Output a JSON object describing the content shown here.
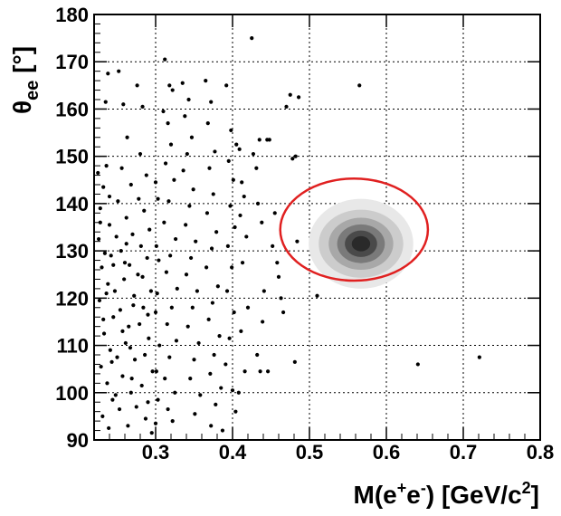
{
  "chart_data": {
    "type": "scatter",
    "title": "",
    "xlabel": "M(e⁺e⁻) [GeV/c²]",
    "ylabel": "θee [°]",
    "xlim": [
      0.22,
      0.8
    ],
    "ylim": [
      90,
      180
    ],
    "grid": true,
    "x_ticks": [
      "0.3",
      "0.4",
      "0.5",
      "0.6",
      "0.7",
      "0.8"
    ],
    "y_ticks": [
      "90",
      "100",
      "110",
      "120",
      "130",
      "140",
      "150",
      "160",
      "170",
      "180"
    ],
    "series": [
      {
        "points": [
          [
            0.238,
            167.5
          ],
          [
            0.235,
            161.5
          ],
          [
            0.236,
            148.0
          ],
          [
            0.225,
            146.5
          ],
          [
            0.232,
            143.5
          ],
          [
            0.228,
            139.0
          ],
          [
            0.24,
            135.5
          ],
          [
            0.226,
            132.5
          ],
          [
            0.242,
            129.0
          ],
          [
            0.23,
            126.5
          ],
          [
            0.238,
            123.0
          ],
          [
            0.227,
            119.5
          ],
          [
            0.245,
            116.0
          ],
          [
            0.233,
            112.5
          ],
          [
            0.241,
            109.0
          ],
          [
            0.229,
            105.5
          ],
          [
            0.237,
            102.0
          ],
          [
            0.244,
            98.5
          ],
          [
            0.231,
            95.0
          ],
          [
            0.239,
            92.5
          ],
          [
            0.252,
            168.0
          ],
          [
            0.258,
            161.0
          ],
          [
            0.263,
            154.0
          ],
          [
            0.256,
            147.5
          ],
          [
            0.268,
            144.0
          ],
          [
            0.251,
            140.5
          ],
          [
            0.262,
            137.0
          ],
          [
            0.27,
            133.5
          ],
          [
            0.255,
            130.0
          ],
          [
            0.266,
            127.0
          ],
          [
            0.259,
            124.0
          ],
          [
            0.272,
            120.5
          ],
          [
            0.254,
            117.5
          ],
          [
            0.265,
            114.0
          ],
          [
            0.261,
            110.5
          ],
          [
            0.273,
            107.0
          ],
          [
            0.257,
            103.5
          ],
          [
            0.268,
            100.0
          ],
          [
            0.253,
            96.5
          ],
          [
            0.264,
            93.0
          ],
          [
            0.276,
            165.0
          ],
          [
            0.283,
            160.5
          ],
          [
            0.28,
            150.5
          ],
          [
            0.288,
            146.0
          ],
          [
            0.278,
            141.0
          ],
          [
            0.285,
            138.5
          ],
          [
            0.292,
            134.5
          ],
          [
            0.281,
            131.0
          ],
          [
            0.289,
            128.5
          ],
          [
            0.277,
            125.0
          ],
          [
            0.294,
            121.5
          ],
          [
            0.284,
            118.0
          ],
          [
            0.279,
            114.5
          ],
          [
            0.291,
            111.5
          ],
          [
            0.286,
            108.0
          ],
          [
            0.296,
            104.5
          ],
          [
            0.282,
            101.5
          ],
          [
            0.29,
            98.0
          ],
          [
            0.287,
            94.5
          ],
          [
            0.295,
            91.5
          ],
          [
            0.228,
            136.0
          ],
          [
            0.249,
            133.0
          ],
          [
            0.234,
            129.5
          ],
          [
            0.26,
            127.5
          ],
          [
            0.247,
            121.5
          ],
          [
            0.271,
            118.5
          ],
          [
            0.232,
            115.5
          ],
          [
            0.257,
            113.0
          ],
          [
            0.243,
            106.5
          ],
          [
            0.269,
            103.0
          ],
          [
            0.248,
            99.5
          ],
          [
            0.275,
            97.0
          ],
          [
            0.236,
            121.0
          ],
          [
            0.262,
            131.5
          ],
          [
            0.25,
            107.5
          ],
          [
            0.283,
            124.5
          ],
          [
            0.24,
            141.5
          ],
          [
            0.267,
            109.5
          ],
          [
            0.245,
            127.0
          ],
          [
            0.29,
            116.5
          ],
          [
            0.3,
            144.5
          ],
          [
            0.303,
            141.0
          ],
          [
            0.301,
            131.0
          ],
          [
            0.304,
            128.0
          ],
          [
            0.302,
            121.0
          ],
          [
            0.3,
            117.0
          ],
          [
            0.305,
            110.0
          ],
          [
            0.301,
            104.5
          ],
          [
            0.303,
            98.5
          ],
          [
            0.3,
            93.5
          ],
          [
            0.312,
            170.5
          ],
          [
            0.318,
            165.0
          ],
          [
            0.322,
            164.0
          ],
          [
            0.31,
            159.5
          ],
          [
            0.316,
            157.0
          ],
          [
            0.32,
            152.5
          ],
          [
            0.313,
            148.5
          ],
          [
            0.324,
            145.0
          ],
          [
            0.317,
            140.5
          ],
          [
            0.311,
            136.0
          ],
          [
            0.326,
            132.5
          ],
          [
            0.319,
            129.0
          ],
          [
            0.314,
            125.5
          ],
          [
            0.328,
            122.0
          ],
          [
            0.321,
            118.0
          ],
          [
            0.315,
            114.5
          ],
          [
            0.327,
            111.0
          ],
          [
            0.318,
            107.5
          ],
          [
            0.312,
            103.0
          ],
          [
            0.325,
            100.0
          ],
          [
            0.316,
            96.5
          ],
          [
            0.322,
            94.0
          ],
          [
            0.335,
            165.5
          ],
          [
            0.343,
            162.0
          ],
          [
            0.338,
            158.5
          ],
          [
            0.347,
            154.0
          ],
          [
            0.341,
            150.5
          ],
          [
            0.336,
            147.0
          ],
          [
            0.349,
            143.0
          ],
          [
            0.344,
            139.5
          ],
          [
            0.339,
            135.5
          ],
          [
            0.352,
            132.0
          ],
          [
            0.346,
            128.5
          ],
          [
            0.34,
            125.0
          ],
          [
            0.354,
            121.5
          ],
          [
            0.348,
            118.0
          ],
          [
            0.342,
            114.0
          ],
          [
            0.356,
            110.5
          ],
          [
            0.35,
            107.0
          ],
          [
            0.345,
            103.0
          ],
          [
            0.358,
            99.5
          ],
          [
            0.351,
            95.5
          ],
          [
            0.365,
            166.0
          ],
          [
            0.372,
            161.5
          ],
          [
            0.368,
            157.0
          ],
          [
            0.377,
            151.0
          ],
          [
            0.37,
            147.5
          ],
          [
            0.375,
            142.0
          ],
          [
            0.367,
            138.0
          ],
          [
            0.379,
            134.0
          ],
          [
            0.373,
            130.5
          ],
          [
            0.366,
            126.5
          ],
          [
            0.381,
            122.5
          ],
          [
            0.374,
            119.0
          ],
          [
            0.369,
            115.5
          ],
          [
            0.383,
            112.0
          ],
          [
            0.376,
            108.0
          ],
          [
            0.371,
            104.0
          ],
          [
            0.385,
            101.0
          ],
          [
            0.378,
            97.5
          ],
          [
            0.372,
            93.0
          ],
          [
            0.387,
            92.0
          ],
          [
            0.392,
            165.0
          ],
          [
            0.398,
            155.5
          ],
          [
            0.395,
            149.0
          ],
          [
            0.401,
            145.0
          ],
          [
            0.397,
            139.5
          ],
          [
            0.403,
            135.0
          ],
          [
            0.394,
            131.0
          ],
          [
            0.399,
            126.5
          ],
          [
            0.393,
            121.5
          ],
          [
            0.402,
            117.0
          ],
          [
            0.396,
            111.5
          ],
          [
            0.391,
            106.0
          ],
          [
            0.4,
            100.5
          ],
          [
            0.404,
            96.0
          ],
          [
            0.405,
            152.5
          ],
          [
            0.409,
            151.5
          ],
          [
            0.412,
            144.5
          ],
          [
            0.415,
            141.5
          ],
          [
            0.41,
            137.5
          ],
          [
            0.418,
            133.0
          ],
          [
            0.413,
            127.5
          ],
          [
            0.42,
            118.0
          ],
          [
            0.411,
            113.0
          ],
          [
            0.416,
            104.5
          ],
          [
            0.408,
            100.0
          ],
          [
            0.425,
            175.0
          ],
          [
            0.427,
            150.5
          ],
          [
            0.431,
            147.5
          ],
          [
            0.435,
            153.5
          ],
          [
            0.433,
            140.0
          ],
          [
            0.438,
            136.0
          ],
          [
            0.441,
            121.5
          ],
          [
            0.445,
            153.5
          ],
          [
            0.439,
            115.0
          ],
          [
            0.436,
            104.5
          ],
          [
            0.446,
            104.5
          ],
          [
            0.448,
            153.5
          ],
          [
            0.432,
            108.0
          ],
          [
            0.452,
            131.0
          ],
          [
            0.455,
            138.0
          ],
          [
            0.458,
            127.5
          ],
          [
            0.46,
            124.5
          ],
          [
            0.463,
            120.0
          ],
          [
            0.47,
            160.5
          ],
          [
            0.475,
            163.0
          ],
          [
            0.478,
            149.5
          ],
          [
            0.482,
            150.0
          ],
          [
            0.486,
            162.5
          ],
          [
            0.481,
            106.5
          ],
          [
            0.51,
            120.5
          ],
          [
            0.565,
            165.0
          ],
          [
            0.641,
            106.0
          ],
          [
            0.721,
            107.5
          ],
          [
            0.484,
            132.0
          ],
          [
            0.466,
            117.0
          ]
        ]
      }
    ],
    "density_region": {
      "center": [
        0.567,
        131.5
      ],
      "levels": [
        {
          "shade": "#e8e8e8",
          "sx": 0.068,
          "sy": 9.5
        },
        {
          "shade": "#cccccc",
          "sx": 0.055,
          "sy": 7.2
        },
        {
          "shade": "#a8a8a8",
          "sx": 0.042,
          "sy": 5.5
        },
        {
          "shade": "#7a7a7a",
          "sx": 0.031,
          "sy": 4.1
        },
        {
          "shade": "#4a4a4a",
          "sx": 0.021,
          "sy": 2.8
        },
        {
          "shade": "#2a2a2a",
          "sx": 0.012,
          "sy": 1.6
        }
      ]
    },
    "ellipse": {
      "center": [
        0.558,
        134.5
      ],
      "rx": 0.096,
      "ry": 10.8,
      "color": "#e02020"
    }
  },
  "labels": {
    "ylabel_theta": "θ",
    "ylabel_sub": "ee",
    "ylabel_unit": " [°]",
    "xlabel_main": "M(e",
    "xlabel_sup1": "+",
    "xlabel_mid": "e",
    "xlabel_sup2": "-",
    "xlabel_end": ") [GeV/c",
    "xlabel_sup3": "2",
    "xlabel_close": "]"
  }
}
